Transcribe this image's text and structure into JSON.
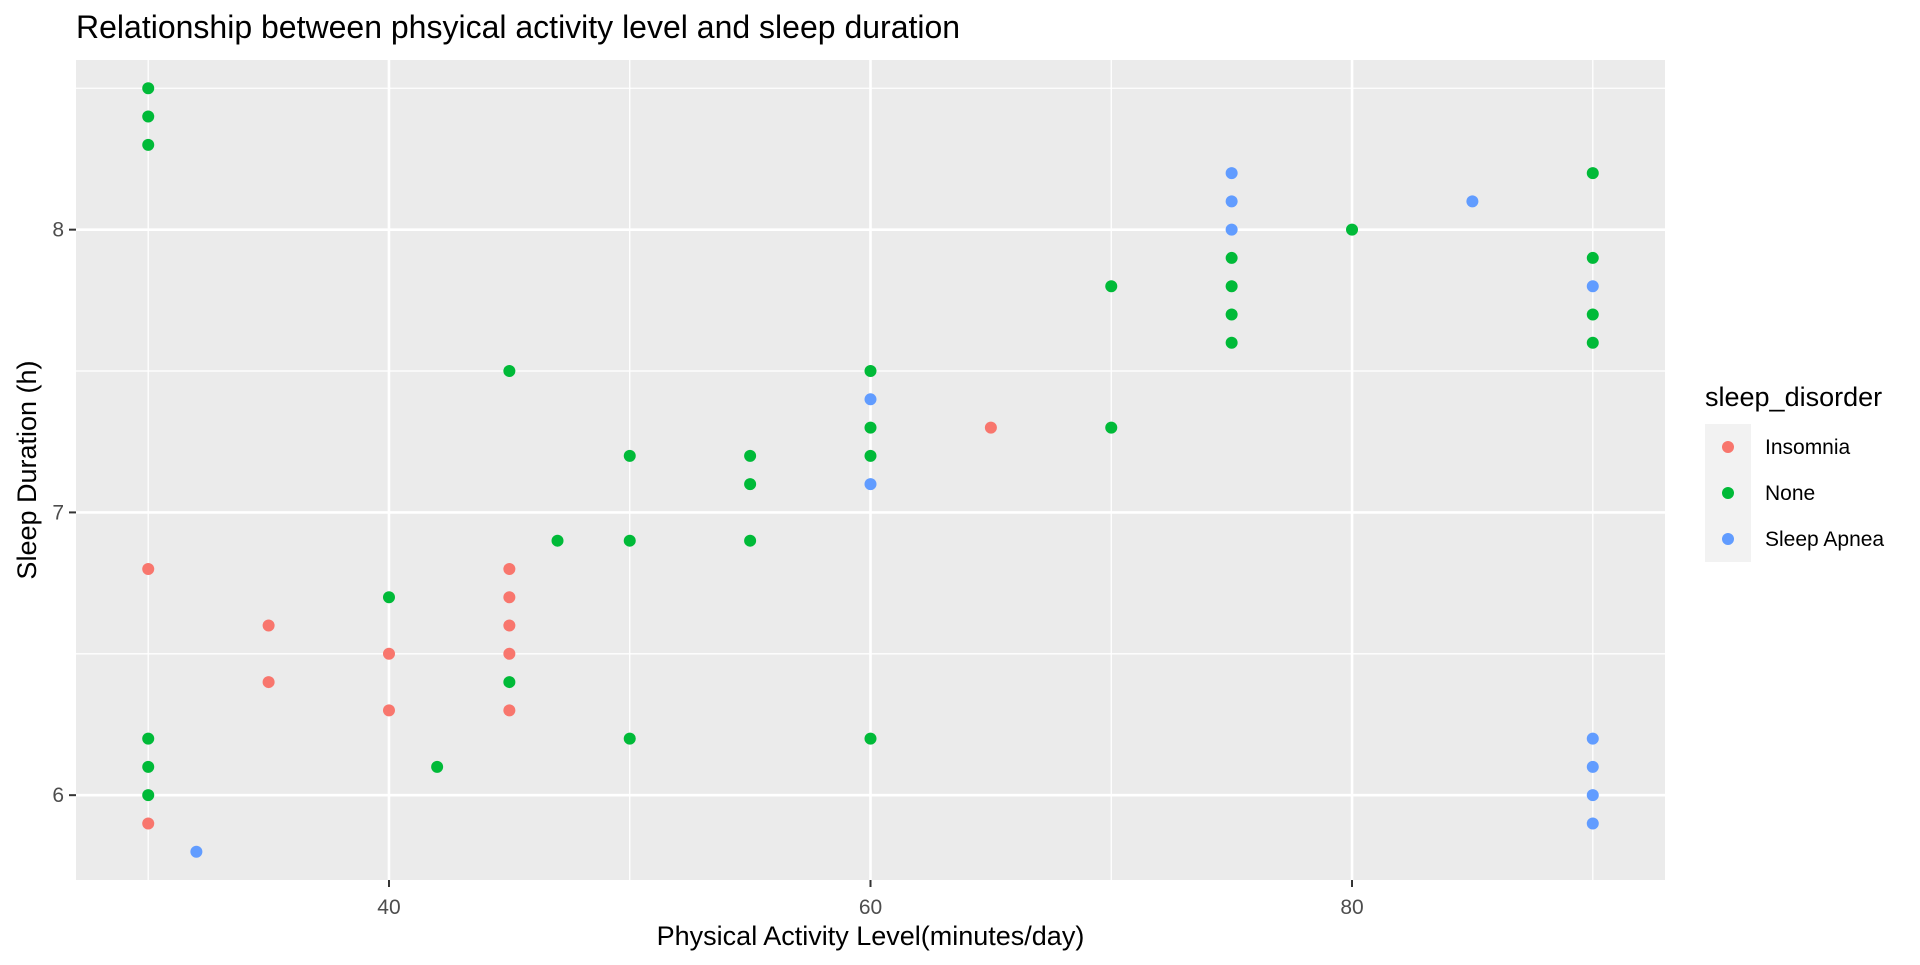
{
  "chart_data": {
    "type": "scatter",
    "title": "Relationship between phsyical activity level and sleep duration",
    "xlabel": "Physical Activity Level(minutes/day)",
    "ylabel": "Sleep Duration (h)",
    "xlim": [
      27,
      93
    ],
    "ylim": [
      5.7,
      8.6
    ],
    "x_ticks": [
      40,
      60,
      80
    ],
    "y_ticks": [
      6,
      7,
      8
    ],
    "x_tick_labels": [
      "40",
      "60",
      "80"
    ],
    "y_tick_labels": [
      "6",
      "7",
      "8"
    ],
    "grid": true,
    "legend": {
      "title": "sleep_disorder",
      "position": "right",
      "entries": [
        "Insomnia",
        "None",
        "Sleep Apnea"
      ]
    },
    "colors": {
      "Insomnia": "#F8766D",
      "None": "#00BA38",
      "Sleep Apnea": "#619CFF",
      "panel": "#EBEBEB",
      "grid": "#FFFFFF"
    },
    "series": [
      {
        "name": "Insomnia",
        "points": [
          [
            30,
            6.8
          ],
          [
            30,
            5.9
          ],
          [
            35,
            6.6
          ],
          [
            35,
            6.4
          ],
          [
            40,
            6.5
          ],
          [
            40,
            6.3
          ],
          [
            45,
            6.8
          ],
          [
            45,
            6.7
          ],
          [
            45,
            6.6
          ],
          [
            45,
            6.5
          ],
          [
            45,
            6.3
          ],
          [
            65,
            7.3
          ]
        ]
      },
      {
        "name": "None",
        "points": [
          [
            30,
            8.5
          ],
          [
            30,
            8.4
          ],
          [
            30,
            8.3
          ],
          [
            30,
            6.2
          ],
          [
            30,
            6.1
          ],
          [
            30,
            6.0
          ],
          [
            40,
            6.7
          ],
          [
            42,
            6.1
          ],
          [
            45,
            7.5
          ],
          [
            45,
            6.4
          ],
          [
            47,
            6.9
          ],
          [
            50,
            7.2
          ],
          [
            50,
            6.9
          ],
          [
            50,
            6.2
          ],
          [
            55,
            7.2
          ],
          [
            55,
            7.1
          ],
          [
            55,
            6.9
          ],
          [
            60,
            7.5
          ],
          [
            60,
            7.3
          ],
          [
            60,
            7.2
          ],
          [
            60,
            6.2
          ],
          [
            70,
            7.8
          ],
          [
            70,
            7.3
          ],
          [
            75,
            7.9
          ],
          [
            75,
            7.8
          ],
          [
            75,
            7.7
          ],
          [
            75,
            7.6
          ],
          [
            80,
            8.0
          ],
          [
            90,
            8.2
          ],
          [
            90,
            7.9
          ],
          [
            90,
            7.7
          ],
          [
            90,
            7.6
          ]
        ]
      },
      {
        "name": "Sleep Apnea",
        "points": [
          [
            32,
            5.8
          ],
          [
            60,
            7.4
          ],
          [
            60,
            7.1
          ],
          [
            75,
            8.2
          ],
          [
            75,
            8.1
          ],
          [
            75,
            8.0
          ],
          [
            85,
            8.1
          ],
          [
            90,
            7.8
          ],
          [
            90,
            6.2
          ],
          [
            90,
            6.1
          ],
          [
            90,
            6.0
          ],
          [
            90,
            5.9
          ]
        ]
      }
    ]
  }
}
